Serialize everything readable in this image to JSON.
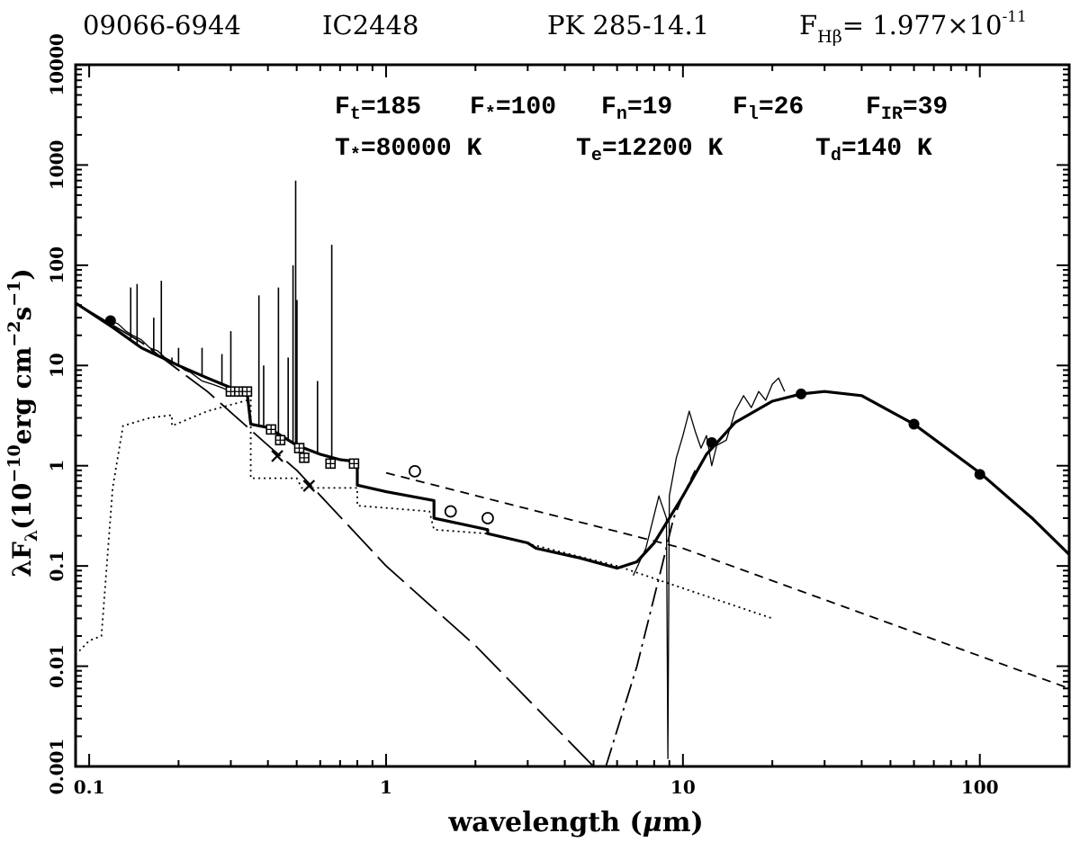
{
  "header": {
    "designation": "09066-6944",
    "name": "IC2448",
    "pk": "PK 285-14.1",
    "fhb_prefix": "F",
    "fhb_sub": "Hβ",
    "fhb_value": "= 1.977×10",
    "fhb_exp": "-11"
  },
  "annotations": {
    "row1": [
      {
        "base": "F",
        "sub": "t",
        "val": "=185"
      },
      {
        "base": "F",
        "sub": "*",
        "val": "=100"
      },
      {
        "base": "F",
        "sub": "n",
        "val": "=19"
      },
      {
        "base": "F",
        "sub": "l",
        "val": "=26"
      },
      {
        "base": "F",
        "sub": "IR",
        "val": "=39"
      }
    ],
    "row2": [
      {
        "base": "T",
        "sub": "*",
        "val": "=80000 K"
      },
      {
        "base": "T",
        "sub": "e",
        "val": "=12200 K"
      },
      {
        "base": "T",
        "sub": "d",
        "val": "=140 K"
      }
    ]
  },
  "axes": {
    "xlabel_pre": "wavelength (",
    "xlabel_mu": "μ",
    "xlabel_post": "m)",
    "ylabel_pre": "λF",
    "ylabel_sub": "λ",
    "ylabel_mid1": "(10",
    "ylabel_sup1": "−10",
    "ylabel_mid2": "erg cm",
    "ylabel_sup2": "−2",
    "ylabel_mid3": "s",
    "ylabel_sup3": "−1",
    "ylabel_end": ")"
  },
  "chart_data": {
    "type": "line",
    "xscale": "log",
    "yscale": "log",
    "xlim": [
      0.09,
      200
    ],
    "ylim": [
      0.001,
      10000
    ],
    "grid": false,
    "xticks": [
      {
        "v": 0.1,
        "label": "0.1"
      },
      {
        "v": 1,
        "label": "1"
      },
      {
        "v": 10,
        "label": "10"
      },
      {
        "v": 100,
        "label": "100"
      }
    ],
    "yticks": [
      {
        "v": 0.001,
        "label": "0.001"
      },
      {
        "v": 0.01,
        "label": "0.01"
      },
      {
        "v": 0.1,
        "label": "0.1"
      },
      {
        "v": 1,
        "label": "1"
      },
      {
        "v": 10,
        "label": "10"
      },
      {
        "v": 100,
        "label": "100"
      },
      {
        "v": 1000,
        "label": "1000"
      },
      {
        "v": 10000,
        "label": "10000"
      }
    ],
    "series": [
      {
        "style": "total-thick",
        "points": [
          [
            0.09,
            42
          ],
          [
            0.12,
            24
          ],
          [
            0.15,
            15
          ],
          [
            0.2,
            10
          ],
          [
            0.25,
            7.5
          ],
          [
            0.3,
            6
          ],
          [
            0.34,
            5.5
          ],
          [
            0.35,
            2.6
          ],
          [
            0.4,
            2.4
          ],
          [
            0.5,
            1.6
          ],
          [
            0.6,
            1.3
          ],
          [
            0.7,
            1.15
          ],
          [
            0.8,
            1.1
          ],
          [
            0.8,
            0.64
          ],
          [
            1.0,
            0.55
          ],
          [
            1.45,
            0.45
          ],
          [
            1.45,
            0.3
          ],
          [
            2.2,
            0.23
          ],
          [
            2.2,
            0.21
          ],
          [
            3.0,
            0.17
          ],
          [
            3.2,
            0.15
          ],
          [
            4.5,
            0.12
          ],
          [
            6.0,
            0.095
          ],
          [
            7.0,
            0.11
          ],
          [
            8.0,
            0.17
          ],
          [
            9.0,
            0.3
          ],
          [
            10,
            0.5
          ],
          [
            12,
            1.3
          ],
          [
            15,
            2.7
          ],
          [
            20,
            4.4
          ],
          [
            25,
            5.2
          ],
          [
            30,
            5.5
          ],
          [
            40,
            5.0
          ],
          [
            60,
            2.6
          ],
          [
            100,
            0.85
          ],
          [
            150,
            0.3
          ],
          [
            200,
            0.13
          ]
        ]
      },
      {
        "style": "stellar-longdash",
        "points": [
          [
            0.09,
            42
          ],
          [
            0.15,
            17
          ],
          [
            0.25,
            5.5
          ],
          [
            0.4,
            1.6
          ],
          [
            0.5,
            0.9
          ],
          [
            1,
            0.1
          ],
          [
            2,
            0.016
          ],
          [
            5,
            0.001
          ]
        ]
      },
      {
        "style": "nebular-dotted",
        "points": [
          [
            0.09,
            0.013
          ],
          [
            0.1,
            0.018
          ],
          [
            0.11,
            0.02
          ],
          [
            0.12,
            0.6
          ],
          [
            0.13,
            2.5
          ],
          [
            0.16,
            3.0
          ],
          [
            0.19,
            3.2
          ],
          [
            0.19,
            2.5
          ],
          [
            0.25,
            3.5
          ],
          [
            0.35,
            4.6
          ],
          [
            0.35,
            0.75
          ],
          [
            0.5,
            0.75
          ],
          [
            0.52,
            0.6
          ],
          [
            0.8,
            0.6
          ],
          [
            0.8,
            0.4
          ],
          [
            1.4,
            0.35
          ],
          [
            1.45,
            0.23
          ],
          [
            2.2,
            0.21
          ],
          [
            6,
            0.1
          ],
          [
            10,
            0.06
          ],
          [
            20,
            0.03
          ]
        ]
      },
      {
        "style": "line-dashed",
        "points": [
          [
            1,
            0.85
          ],
          [
            10,
            0.15
          ],
          [
            200,
            0.006
          ]
        ]
      },
      {
        "style": "dust-dashdot",
        "points": [
          [
            5.5,
            0.001
          ],
          [
            7,
            0.01
          ],
          [
            8.5,
            0.1
          ],
          [
            9.3,
            0.3
          ],
          [
            10,
            0.5
          ],
          [
            11,
            0.9
          ]
        ]
      },
      {
        "style": "spectrum-thin",
        "points": [
          [
            6.8,
            0.08
          ],
          [
            7.5,
            0.15
          ],
          [
            8.3,
            0.5
          ],
          [
            8.8,
            0.3
          ],
          [
            8.9,
            0.0012
          ],
          [
            9.0,
            0.5
          ],
          [
            9.5,
            1.2
          ],
          [
            10,
            2.0
          ],
          [
            10.5,
            3.5
          ],
          [
            11,
            2.2
          ],
          [
            11.5,
            1.5
          ],
          [
            12,
            2.0
          ],
          [
            12.5,
            1.0
          ],
          [
            13,
            1.6
          ],
          [
            14,
            1.8
          ],
          [
            15,
            3.5
          ],
          [
            16,
            5.0
          ],
          [
            17,
            3.8
          ],
          [
            18,
            5.5
          ],
          [
            19,
            4.5
          ],
          [
            20,
            6.5
          ],
          [
            21,
            7.5
          ],
          [
            22,
            5.5
          ]
        ]
      }
    ],
    "uv_spectrum": [
      [
        0.118,
        28
      ],
      [
        0.125,
        26
      ],
      [
        0.133,
        22
      ],
      [
        0.14,
        20
      ],
      [
        0.15,
        18
      ],
      [
        0.16,
        15
      ],
      [
        0.17,
        14
      ],
      [
        0.18,
        12
      ],
      [
        0.19,
        11
      ],
      [
        0.2,
        10
      ],
      [
        0.21,
        9
      ],
      [
        0.22,
        8.5
      ],
      [
        0.24,
        7
      ],
      [
        0.26,
        6.5
      ],
      [
        0.28,
        6
      ],
      [
        0.3,
        5.5
      ],
      [
        0.32,
        5.5
      ]
    ],
    "emission_lines": [
      {
        "x": 0.138,
        "y": 60
      },
      {
        "x": 0.145,
        "y": 65
      },
      {
        "x": 0.165,
        "y": 30
      },
      {
        "x": 0.175,
        "y": 70
      },
      {
        "x": 0.19,
        "y": 12
      },
      {
        "x": 0.2,
        "y": 15
      },
      {
        "x": 0.24,
        "y": 15
      },
      {
        "x": 0.28,
        "y": 13
      },
      {
        "x": 0.3,
        "y": 22
      },
      {
        "x": 0.373,
        "y": 50
      },
      {
        "x": 0.387,
        "y": 10
      },
      {
        "x": 0.434,
        "y": 60
      },
      {
        "x": 0.468,
        "y": 12
      },
      {
        "x": 0.486,
        "y": 100
      },
      {
        "x": 0.496,
        "y": 700
      },
      {
        "x": 0.501,
        "y": 45
      },
      {
        "x": 0.5876,
        "y": 7
      },
      {
        "x": 0.6563,
        "y": 160
      }
    ],
    "points_filled": [
      [
        0.118,
        28
      ],
      [
        12.5,
        1.7
      ],
      [
        25,
        5.2
      ],
      [
        60,
        2.6
      ],
      [
        100,
        0.82
      ]
    ],
    "points_open_circle": [
      [
        1.25,
        0.88
      ],
      [
        1.65,
        0.35
      ],
      [
        2.2,
        0.3
      ]
    ],
    "points_boxed": [
      [
        0.3,
        5.5
      ],
      [
        0.32,
        5.5
      ],
      [
        0.34,
        5.5
      ],
      [
        0.41,
        2.3
      ],
      [
        0.44,
        1.8
      ],
      [
        0.51,
        1.5
      ],
      [
        0.53,
        1.2
      ],
      [
        0.65,
        1.05
      ],
      [
        0.78,
        1.05
      ]
    ],
    "points_cross": [
      [
        0.43,
        1.25
      ],
      [
        0.55,
        0.63
      ]
    ]
  }
}
